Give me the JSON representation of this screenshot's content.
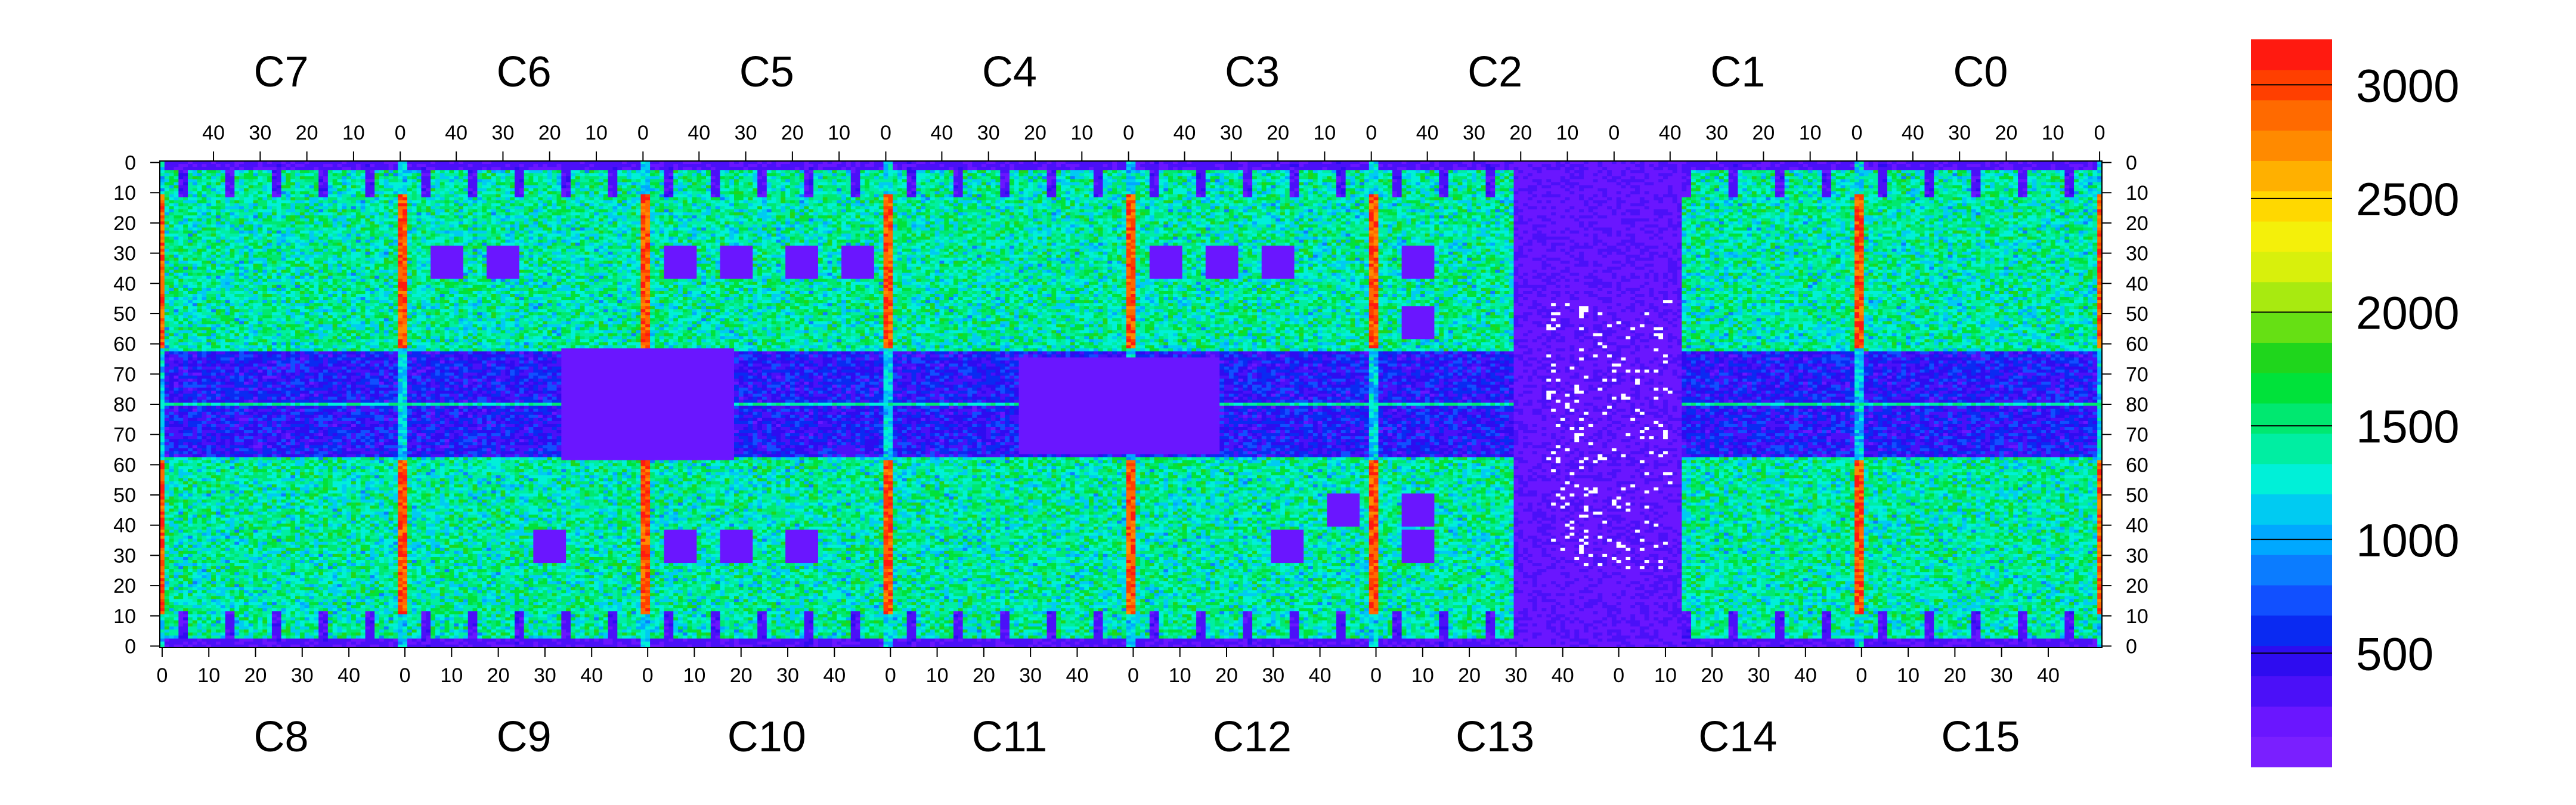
{
  "chart_data": {
    "type": "heatmap",
    "title": "",
    "xlabel": "",
    "ylabel": "",
    "grid": false,
    "top_chips": [
      "C7",
      "C6",
      "C5",
      "C4",
      "C3",
      "C2",
      "C1",
      "C0"
    ],
    "bottom_chips": [
      "C8",
      "C9",
      "C10",
      "C11",
      "C12",
      "C13",
      "C14",
      "C15"
    ],
    "top_x_ticks": [
      "40",
      "30",
      "20",
      "10",
      "0"
    ],
    "bottom_x_ticks": [
      "0",
      "10",
      "20",
      "30",
      "40"
    ],
    "y_ticks": [
      "0",
      "10",
      "20",
      "30",
      "40",
      "50",
      "60",
      "70",
      "80",
      "70",
      "60",
      "50",
      "40",
      "30",
      "20",
      "10",
      "0"
    ],
    "chip_columns": 52,
    "rows_per_half": 80,
    "zlim": [
      0,
      3200
    ],
    "colorbar": {
      "ticks": [
        500,
        1000,
        1500,
        2000,
        2500,
        3000
      ],
      "tick_labels": [
        "500",
        "1000",
        "1500",
        "2000",
        "2500",
        "3000"
      ],
      "colors": [
        "#7a1fff",
        "#6a16ff",
        "#4b10f8",
        "#2e0cf0",
        "#0a2af2",
        "#1150ff",
        "#0b7cff",
        "#00a8ff",
        "#00cbf2",
        "#00f0d8",
        "#00eea2",
        "#00e870",
        "#00e23a",
        "#1fd61c",
        "#66e014",
        "#a8ea10",
        "#d8f00c",
        "#f4f00a",
        "#ffd800",
        "#ffb000",
        "#ff8a00",
        "#ff6a00",
        "#ff3f00",
        "#ff1a10"
      ]
    },
    "pattern": {
      "bright_chip_edge_columns": [
        0,
        51
      ],
      "mid_strip_row": 80,
      "dark_blocks_top": [
        {
          "chip": "C6",
          "rows": [
            28,
            38
          ],
          "cols": [
            6,
            12
          ]
        },
        {
          "chip": "C6",
          "rows": [
            28,
            38
          ],
          "cols": [
            18,
            24
          ]
        },
        {
          "chip": "C5",
          "rows": [
            28,
            38
          ],
          "cols": [
            4,
            10
          ]
        },
        {
          "chip": "C5",
          "rows": [
            28,
            38
          ],
          "cols": [
            16,
            22
          ]
        },
        {
          "chip": "C5",
          "rows": [
            28,
            38
          ],
          "cols": [
            30,
            36
          ]
        },
        {
          "chip": "C5",
          "rows": [
            28,
            38
          ],
          "cols": [
            42,
            48
          ]
        },
        {
          "chip": "C3",
          "rows": [
            28,
            38
          ],
          "cols": [
            4,
            10
          ]
        },
        {
          "chip": "C3",
          "rows": [
            28,
            38
          ],
          "cols": [
            16,
            22
          ]
        },
        {
          "chip": "C3",
          "rows": [
            28,
            38
          ],
          "cols": [
            28,
            34
          ]
        },
        {
          "chip": "C2",
          "rows": [
            28,
            38
          ],
          "cols": [
            6,
            12
          ]
        },
        {
          "chip": "C2",
          "rows": [
            48,
            58
          ],
          "cols": [
            6,
            12
          ]
        }
      ],
      "dark_blocks_bottom": [
        {
          "chip": "C9",
          "rows": [
            28,
            38
          ],
          "cols": [
            28,
            34
          ]
        },
        {
          "chip": "C10",
          "rows": [
            28,
            38
          ],
          "cols": [
            4,
            10
          ]
        },
        {
          "chip": "C10",
          "rows": [
            28,
            38
          ],
          "cols": [
            16,
            22
          ]
        },
        {
          "chip": "C10",
          "rows": [
            28,
            38
          ],
          "cols": [
            30,
            36
          ]
        },
        {
          "chip": "C12",
          "rows": [
            28,
            38
          ],
          "cols": [
            30,
            36
          ]
        },
        {
          "chip": "C12",
          "rows": [
            40,
            50
          ],
          "cols": [
            42,
            48
          ]
        },
        {
          "chip": "C13",
          "rows": [
            28,
            38
          ],
          "cols": [
            6,
            12
          ]
        },
        {
          "chip": "C13",
          "rows": [
            40,
            50
          ],
          "cols": [
            6,
            12
          ]
        }
      ],
      "dead_region_middle": [
        {
          "chips": "C6-C5 / C9-C10",
          "rows_top": [
            63,
            80
          ],
          "rows_bottom": [
            63,
            80
          ],
          "cols_note": "right of C9/C6 centre to C10/C5 centre"
        },
        {
          "chips": "C4-C3 / C11-C12",
          "rows_top": [
            63,
            80
          ],
          "rows_bottom": [
            63,
            80
          ],
          "cols_note": "C11/C4 right side to C12/C3 left side"
        }
      ],
      "low_efficiency_region": {
        "chips": "C13 / C2 right side, C14 / C1 left side",
        "note": "mostly below 300, sparse white pixels"
      }
    }
  }
}
